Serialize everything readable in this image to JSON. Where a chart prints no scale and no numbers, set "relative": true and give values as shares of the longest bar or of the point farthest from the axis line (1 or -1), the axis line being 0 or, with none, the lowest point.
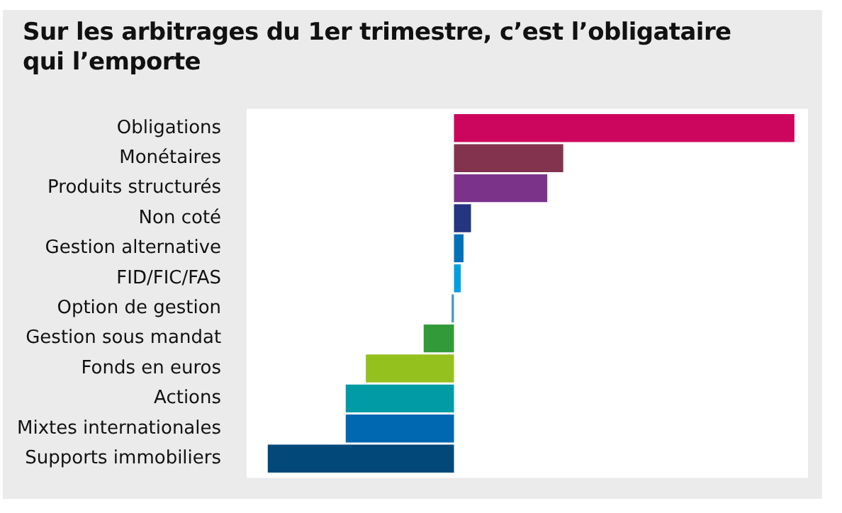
{
  "chart_data": {
    "type": "bar",
    "title": "Sur les arbitrages du 1er trimestre, c’est l’obligataire qui l’emporte",
    "orientation": "horizontal",
    "relative": true,
    "legend": false,
    "categories": [
      "Obligations",
      "Monétaires",
      "Produits structurés",
      "Non coté",
      "Gestion alternative",
      "FID/FIC/FAS",
      "Option de gestion",
      "Gestion sous mandat",
      "Fonds en euros",
      "Actions",
      "Mixtes internationales",
      "Supports immobiliers"
    ],
    "values": [
      1,
      0.321,
      0.274,
      0.05,
      0.028,
      0.02,
      -0.007,
      -0.089,
      -0.259,
      -0.318,
      -0.318,
      -0.547
    ],
    "colors": [
      "#cc065e",
      "#84334f",
      "#7b338a",
      "#25357f",
      "#0070b8",
      "#00a0e0",
      "#4a9ab8",
      "#339a3a",
      "#95c11f",
      "#009ba4",
      "#0067b1",
      "#02497a"
    ]
  }
}
